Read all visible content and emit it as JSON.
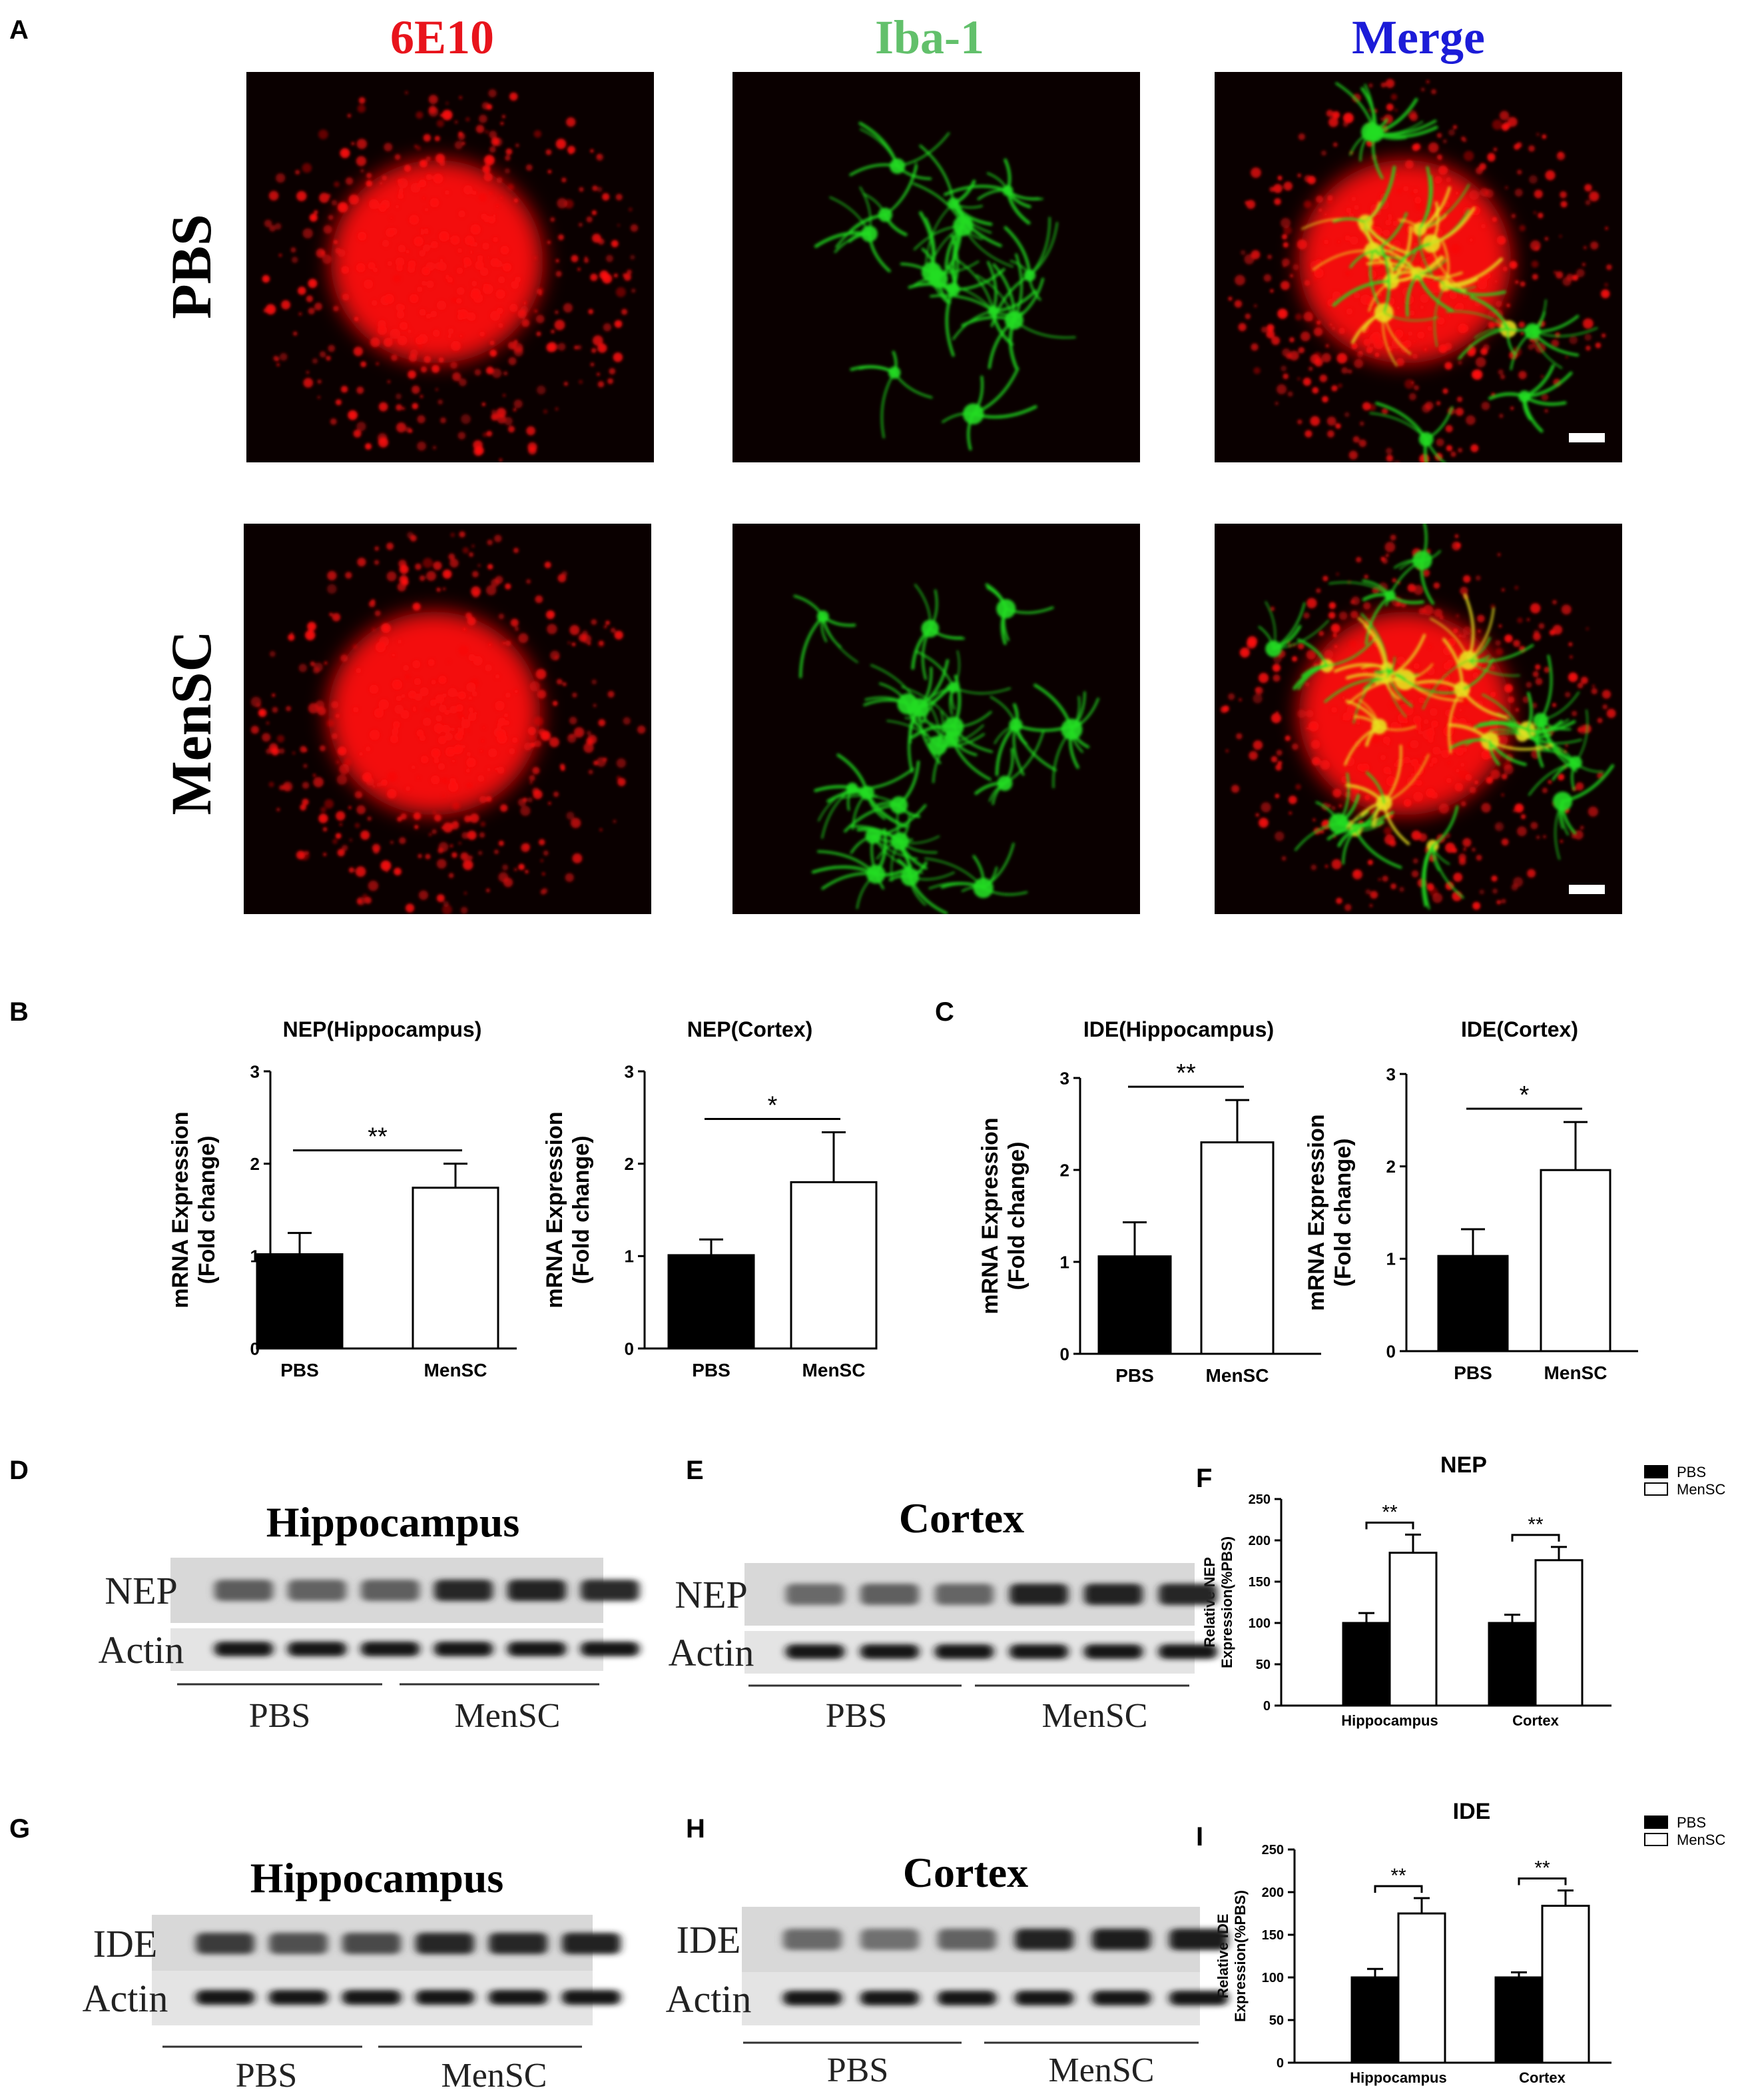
{
  "panel_letters": {
    "A": "A",
    "B": "B",
    "C": "C",
    "D": "D",
    "E": "E",
    "F": "F",
    "G": "G",
    "H": "H",
    "I": "I"
  },
  "panel_a": {
    "column_headers": [
      {
        "text": "6E10",
        "color": "#e8141c"
      },
      {
        "text": "Iba-1",
        "color": "#62c06b"
      },
      {
        "text": "Merge",
        "color": "#1c1cd8"
      }
    ],
    "row_labels": [
      "PBS",
      "MenSC"
    ],
    "channel_colors": {
      "red": "#ff1010",
      "green": "#22dd22",
      "merge_overlap": "#e8e020",
      "background": "#0a0000"
    }
  },
  "chart_data": [
    {
      "id": "B1",
      "type": "bar",
      "title": "NEP(Hippocampus)",
      "categories": [
        "PBS",
        "MenSC"
      ],
      "values": [
        1.02,
        1.74
      ],
      "errors": [
        0.23,
        0.26
      ],
      "ylabel": "mRNA Expression\n(Fold change)",
      "ylim": [
        0,
        3
      ],
      "yticks": [
        0,
        1,
        2,
        3
      ],
      "significance": "**",
      "fills": [
        "#000000",
        "#ffffff"
      ]
    },
    {
      "id": "B2",
      "type": "bar",
      "title": "NEP(Cortex)",
      "categories": [
        "PBS",
        "MenSC"
      ],
      "values": [
        1.01,
        1.8
      ],
      "errors": [
        0.17,
        0.54
      ],
      "ylabel": "mRNA Expression\n(Fold change)",
      "ylim": [
        0,
        3
      ],
      "yticks": [
        0,
        1,
        2,
        3
      ],
      "significance": "*",
      "fills": [
        "#000000",
        "#ffffff"
      ]
    },
    {
      "id": "C1",
      "type": "bar",
      "title": "IDE(Hippocampus)",
      "categories": [
        "PBS",
        "MenSC"
      ],
      "values": [
        1.06,
        2.3
      ],
      "errors": [
        0.37,
        0.46
      ],
      "ylabel": "mRNA Expression\n(Fold change)",
      "ylim": [
        0,
        3
      ],
      "yticks": [
        0,
        1,
        2,
        3
      ],
      "significance": "**",
      "fills": [
        "#000000",
        "#ffffff"
      ]
    },
    {
      "id": "C2",
      "type": "bar",
      "title": "IDE(Cortex)",
      "categories": [
        "PBS",
        "MenSC"
      ],
      "values": [
        1.03,
        1.96
      ],
      "errors": [
        0.29,
        0.52
      ],
      "ylabel": "mRNA Expression\n(Fold change)",
      "ylim": [
        0,
        3
      ],
      "yticks": [
        0,
        1,
        2,
        3
      ],
      "significance": "*",
      "fills": [
        "#000000",
        "#ffffff"
      ]
    },
    {
      "id": "F",
      "type": "bar",
      "title": "NEP",
      "categories": [
        "Hippocampus",
        "Cortex"
      ],
      "series": [
        {
          "name": "PBS",
          "values": [
            100,
            100
          ],
          "errors": [
            12,
            10
          ],
          "color": "#000000"
        },
        {
          "name": "MenSC",
          "values": [
            185,
            176
          ],
          "errors": [
            22,
            16
          ],
          "color": "#ffffff"
        }
      ],
      "ylabel": "Relative NEP\nExpression(%PBS)",
      "ylim": [
        0,
        250
      ],
      "yticks": [
        0,
        50,
        100,
        150,
        200,
        250
      ],
      "significance": [
        "**",
        "**"
      ],
      "legend": "top-right"
    },
    {
      "id": "I",
      "type": "bar",
      "title": "IDE",
      "categories": [
        "Hippocampus",
        "Cortex"
      ],
      "series": [
        {
          "name": "PBS",
          "values": [
            100,
            100
          ],
          "errors": [
            10,
            6
          ],
          "color": "#000000"
        },
        {
          "name": "MenSC",
          "values": [
            175,
            184
          ],
          "errors": [
            18,
            18
          ],
          "color": "#ffffff"
        }
      ],
      "ylabel": "Relative IDE\nExpression(%PBS)",
      "ylim": [
        0,
        250
      ],
      "yticks": [
        0,
        50,
        100,
        150,
        200,
        250
      ],
      "significance": [
        "**",
        "**"
      ],
      "legend": "top-right"
    }
  ],
  "blots": [
    {
      "id": "D",
      "title": "Hippocampus",
      "rows": [
        "NEP",
        "Actin"
      ],
      "groups": [
        "PBS",
        "MenSC"
      ],
      "intensity": {
        "NEP": [
          0.45,
          0.4,
          0.42,
          0.85,
          0.88,
          0.82
        ],
        "Actin": [
          1,
          1,
          1,
          1,
          1,
          1
        ]
      }
    },
    {
      "id": "E",
      "title": "Cortex",
      "rows": [
        "NEP",
        "Actin"
      ],
      "groups": [
        "PBS",
        "MenSC"
      ],
      "intensity": {
        "NEP": [
          0.35,
          0.42,
          0.38,
          0.88,
          0.9,
          0.85
        ],
        "Actin": [
          1,
          1,
          1,
          1,
          1,
          1
        ]
      }
    },
    {
      "id": "G",
      "title": "Hippocampus",
      "rows": [
        "IDE",
        "Actin"
      ],
      "groups": [
        "PBS",
        "MenSC"
      ],
      "intensity": {
        "IDE": [
          0.7,
          0.55,
          0.6,
          0.85,
          0.85,
          0.88
        ],
        "Actin": [
          1,
          1,
          1,
          1,
          1,
          1
        ]
      }
    },
    {
      "id": "H",
      "title": "Cortex",
      "rows": [
        "IDE",
        "Actin"
      ],
      "groups": [
        "PBS",
        "MenSC"
      ],
      "intensity": {
        "IDE": [
          0.35,
          0.3,
          0.4,
          0.9,
          0.95,
          0.95
        ],
        "Actin": [
          1,
          1,
          1,
          1,
          1,
          1
        ]
      }
    }
  ]
}
